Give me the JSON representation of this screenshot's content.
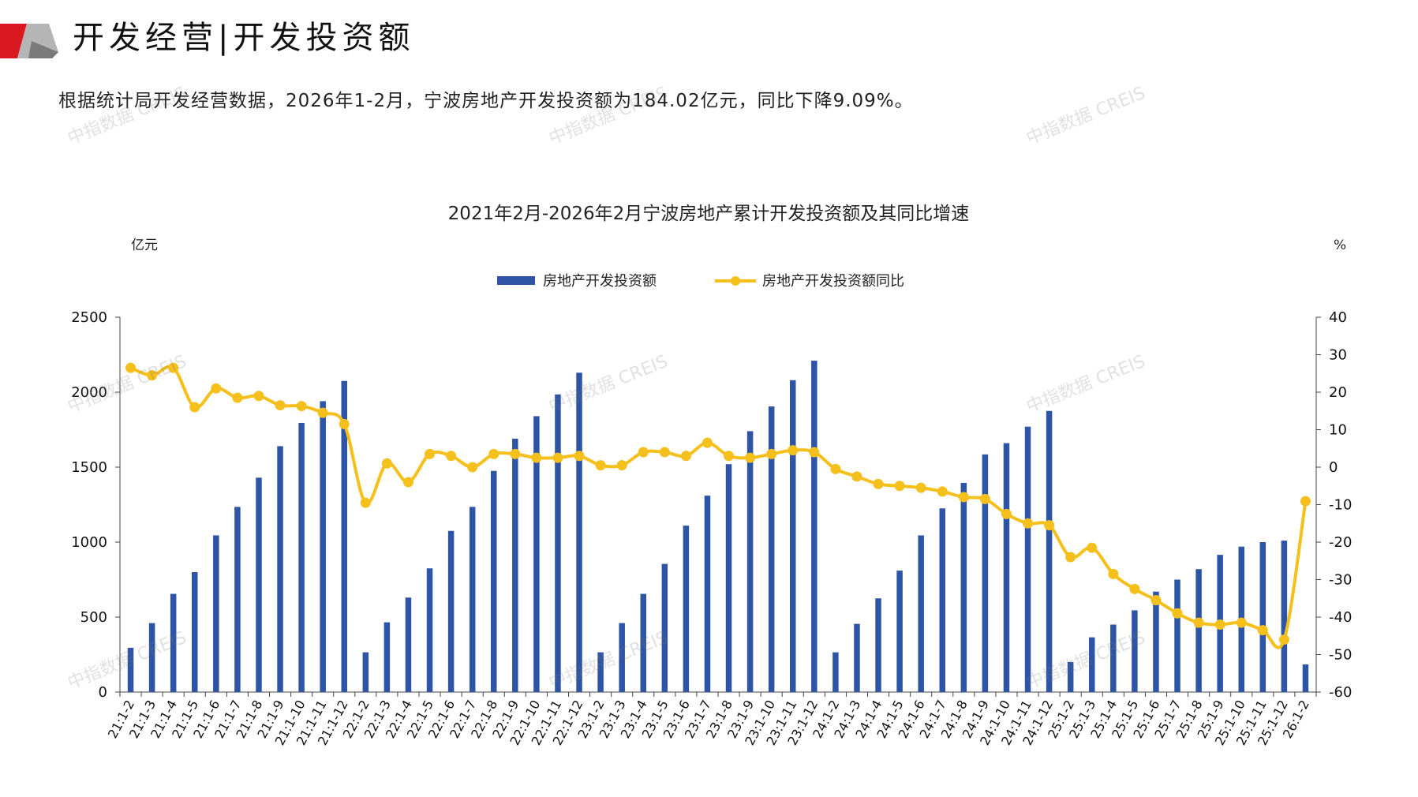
{
  "header": {
    "title": "开发经营|开发投资额",
    "summary": "根据统计局开发经营数据，2026年1-2月，宁波房地产开发投资额为184.02亿元，同比下降9.09%。"
  },
  "watermark": {
    "text": "中指数据 CREIS"
  },
  "colors": {
    "bar": "#2e55a5",
    "line": "#f5bf1c",
    "accent_red": "#d9181f",
    "accent_gray": "#9a9a9a"
  },
  "chart_data": {
    "type": "bar+line",
    "title": "2021年2月-2026年2月宁波房地产累计开发投资额及其同比增速",
    "ylabel_left": "亿元",
    "ylabel_right": "%",
    "ylim_left": [
      0,
      2500
    ],
    "yticks_left": [
      0,
      500,
      1000,
      1500,
      2000,
      2500
    ],
    "ylim_right": [
      -60,
      40
    ],
    "yticks_right": [
      -60,
      -50,
      -40,
      -30,
      -20,
      -10,
      0,
      10,
      20,
      30,
      40
    ],
    "legend_position": "top-center",
    "grid": false,
    "categories": [
      "21:1-2",
      "21:1-3",
      "21:1-4",
      "21:1-5",
      "21:1-6",
      "21:1-7",
      "21:1-8",
      "21:1-9",
      "21:1-10",
      "21:1-11",
      "21:1-12",
      "22:1-2",
      "22:1-3",
      "22:1-4",
      "22:1-5",
      "22:1-6",
      "22:1-7",
      "22:1-8",
      "22:1-9",
      "22:1-10",
      "22:1-11",
      "22:1-12",
      "23:1-2",
      "23:1-3",
      "23:1-4",
      "23:1-5",
      "23:1-6",
      "23:1-7",
      "23:1-8",
      "23:1-9",
      "23:1-10",
      "23:1-11",
      "23:1-12",
      "24:1-2",
      "24:1-3",
      "24:1-4",
      "24:1-5",
      "24:1-6",
      "24:1-7",
      "24:1-8",
      "24:1-9",
      "24:1-10",
      "24:1-11",
      "24:1-12",
      "25:1-2",
      "25:1-3",
      "25:1-4",
      "25:1-5",
      "25:1-6",
      "25:1-7",
      "25:1-8",
      "25:1-9",
      "25:1-10",
      "25:1-11",
      "25:1-12",
      "26:1-2"
    ],
    "series": [
      {
        "name": "房地产开发投资额",
        "type": "bar",
        "axis": "left",
        "values": [
          295,
          460,
          655,
          800,
          1045,
          1235,
          1430,
          1640,
          1795,
          1940,
          2075,
          265,
          465,
          630,
          825,
          1075,
          1235,
          1475,
          1690,
          1840,
          1985,
          2130,
          265,
          460,
          655,
          855,
          1110,
          1310,
          1520,
          1740,
          1905,
          2080,
          2210,
          265,
          455,
          625,
          810,
          1045,
          1225,
          1395,
          1585,
          1660,
          1770,
          1875,
          200,
          365,
          450,
          545,
          670,
          750,
          820,
          915,
          970,
          1000,
          1010,
          184.02
        ]
      },
      {
        "name": "房地产开发投资额同比",
        "type": "line",
        "axis": "right",
        "values": [
          26.5,
          24.5,
          26.5,
          16.0,
          21.0,
          18.5,
          19.0,
          16.5,
          16.3,
          14.5,
          11.5,
          -9.5,
          1.0,
          -4.0,
          3.5,
          3.0,
          0.0,
          3.5,
          3.5,
          2.5,
          2.5,
          3.0,
          0.5,
          0.5,
          4.0,
          4.0,
          3.0,
          6.5,
          3.0,
          2.5,
          3.5,
          4.5,
          4.0,
          -0.5,
          -2.5,
          -4.5,
          -5.0,
          -5.5,
          -6.5,
          -8.0,
          -8.5,
          -12.5,
          -15.0,
          -15.5,
          -24.0,
          -21.5,
          -28.5,
          -32.5,
          -35.5,
          -39.0,
          -41.5,
          -42.0,
          -41.5,
          -43.5,
          -46.0,
          -9.09
        ]
      }
    ]
  }
}
